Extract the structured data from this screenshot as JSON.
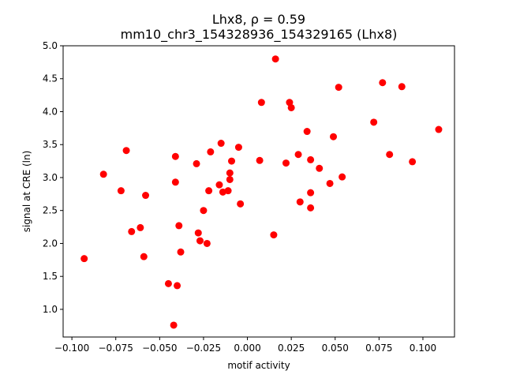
{
  "chart_data": {
    "type": "scatter",
    "title_line1": "Lhx8, ρ = 0.59",
    "title_line2": "mm10_chr3_154328936_154329165 (Lhx8)",
    "xlabel": "motif activity",
    "ylabel": "signal at CRE (ln)",
    "xlim": [
      -0.105,
      0.118
    ],
    "ylim": [
      0.58,
      5.0
    ],
    "xticks": [
      -0.1,
      -0.075,
      -0.05,
      -0.025,
      0.0,
      0.025,
      0.05,
      0.075,
      0.1
    ],
    "xtick_labels": [
      "−0.100",
      "−0.075",
      "−0.050",
      "−0.025",
      "0.000",
      "0.025",
      "0.050",
      "0.075",
      "0.100"
    ],
    "yticks": [
      1.0,
      1.5,
      2.0,
      2.5,
      3.0,
      3.5,
      4.0,
      4.5,
      5.0
    ],
    "ytick_labels": [
      "1.0",
      "1.5",
      "2.0",
      "2.5",
      "3.0",
      "3.5",
      "4.0",
      "4.5",
      "5.0"
    ],
    "grid": false,
    "marker_color": "#ff0000",
    "points": [
      {
        "x": -0.093,
        "y": 1.77
      },
      {
        "x": -0.082,
        "y": 3.05
      },
      {
        "x": -0.072,
        "y": 2.8
      },
      {
        "x": -0.069,
        "y": 3.41
      },
      {
        "x": -0.066,
        "y": 2.18
      },
      {
        "x": -0.061,
        "y": 2.24
      },
      {
        "x": -0.059,
        "y": 1.8
      },
      {
        "x": -0.058,
        "y": 2.73
      },
      {
        "x": -0.045,
        "y": 1.39
      },
      {
        "x": -0.042,
        "y": 0.76
      },
      {
        "x": -0.041,
        "y": 2.93
      },
      {
        "x": -0.041,
        "y": 3.32
      },
      {
        "x": -0.04,
        "y": 1.36
      },
      {
        "x": -0.039,
        "y": 2.27
      },
      {
        "x": -0.038,
        "y": 1.87
      },
      {
        "x": -0.029,
        "y": 3.21
      },
      {
        "x": -0.028,
        "y": 2.16
      },
      {
        "x": -0.027,
        "y": 2.04
      },
      {
        "x": -0.025,
        "y": 2.5
      },
      {
        "x": -0.023,
        "y": 2.0
      },
      {
        "x": -0.022,
        "y": 2.8
      },
      {
        "x": -0.021,
        "y": 3.39
      },
      {
        "x": -0.016,
        "y": 2.89
      },
      {
        "x": -0.015,
        "y": 3.52
      },
      {
        "x": -0.014,
        "y": 2.78
      },
      {
        "x": -0.011,
        "y": 2.8
      },
      {
        "x": -0.01,
        "y": 2.97
      },
      {
        "x": -0.01,
        "y": 3.07
      },
      {
        "x": -0.009,
        "y": 3.25
      },
      {
        "x": -0.005,
        "y": 3.46
      },
      {
        "x": -0.004,
        "y": 2.6
      },
      {
        "x": 0.007,
        "y": 3.26
      },
      {
        "x": 0.008,
        "y": 4.14
      },
      {
        "x": 0.015,
        "y": 2.13
      },
      {
        "x": 0.016,
        "y": 4.8
      },
      {
        "x": 0.022,
        "y": 3.22
      },
      {
        "x": 0.024,
        "y": 4.14
      },
      {
        "x": 0.025,
        "y": 4.06
      },
      {
        "x": 0.029,
        "y": 3.35
      },
      {
        "x": 0.03,
        "y": 2.63
      },
      {
        "x": 0.034,
        "y": 3.7
      },
      {
        "x": 0.036,
        "y": 2.54
      },
      {
        "x": 0.036,
        "y": 2.77
      },
      {
        "x": 0.036,
        "y": 3.27
      },
      {
        "x": 0.041,
        "y": 3.14
      },
      {
        "x": 0.047,
        "y": 2.91
      },
      {
        "x": 0.049,
        "y": 3.62
      },
      {
        "x": 0.052,
        "y": 4.37
      },
      {
        "x": 0.054,
        "y": 3.01
      },
      {
        "x": 0.072,
        "y": 3.84
      },
      {
        "x": 0.077,
        "y": 4.44
      },
      {
        "x": 0.081,
        "y": 3.35
      },
      {
        "x": 0.088,
        "y": 4.38
      },
      {
        "x": 0.094,
        "y": 3.24
      },
      {
        "x": 0.109,
        "y": 3.73
      }
    ]
  }
}
